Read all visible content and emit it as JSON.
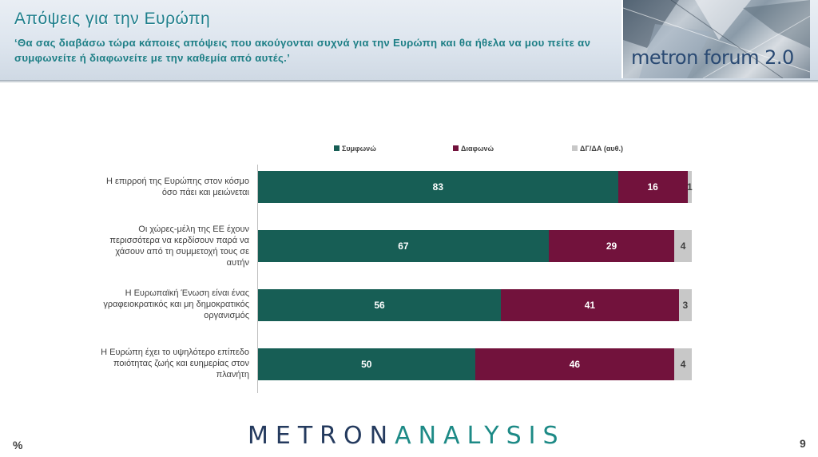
{
  "header": {
    "title": "Απόψεις για την Ευρώπη",
    "subtitle": "‘Θα σας διαβάσω τώρα κάποιες απόψεις που ακούγονται συχνά για την Ευρώπη και θα ήθελα να μου πείτε αν συμφωνείτε ή διαφωνείτε με την καθεμία από αυτές.’",
    "logo_text": "metron forum 2.0"
  },
  "chart_data": {
    "type": "bar",
    "orientation": "horizontal",
    "stacked": true,
    "unit": "%",
    "xlim": [
      0,
      100
    ],
    "legend_position": "top",
    "grid": false,
    "categories": [
      "Η επιρροή της Ευρώπης στον κόσμο όσο πάει και μειώνεται",
      "Οι χώρες-μέλη της ΕΕ έχουν περισσότερα να κερδίσουν παρά να χάσουν από τη συμμετοχή τους σε αυτήν",
      "Η Ευρωπαϊκή Ένωση είναι ένας γραφειοκρατικός και μη δημοκρατικός οργανισμός",
      "Η Ευρώπη έχει το υψηλότερο επίπεδο ποιότητας ζωής και ευημερίας στον πλανήτη"
    ],
    "series": [
      {
        "name": "Συμφωνώ",
        "color": "#175e55",
        "values": [
          83,
          67,
          56,
          50
        ]
      },
      {
        "name": "Διαφωνώ",
        "color": "#72123c",
        "values": [
          16,
          29,
          41,
          46
        ]
      },
      {
        "name": "ΔΓ/ΔΑ (αυθ.)",
        "color": "#c8c8c8",
        "values": [
          1,
          4,
          3,
          4
        ]
      }
    ]
  },
  "footer": {
    "brand_part1": "METRON",
    "brand_part2": "ANALYSIS",
    "unit_mark": "%",
    "page_number": "9"
  }
}
